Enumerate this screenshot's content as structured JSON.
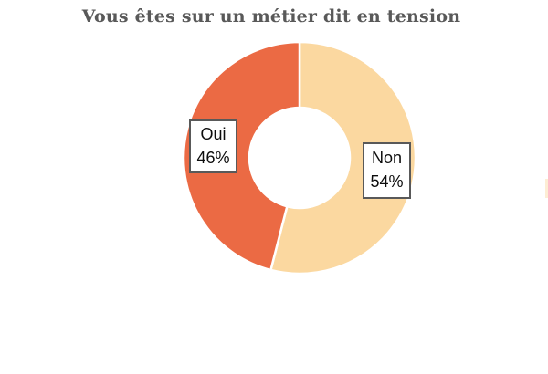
{
  "title": "Vous êtes sur un métier dit en tension",
  "title_color": "#595959",
  "chart_data": {
    "type": "pie",
    "subtype": "donut",
    "title": "Vous êtes sur un métier dit en tension",
    "units": "percent",
    "start_angle_deg": 0,
    "direction": "clockwise",
    "hole_ratio": 0.43,
    "separator_color": "#ffffff",
    "legend": "none",
    "segments": [
      {
        "label": "Non",
        "value": 54,
        "pct_label": "54%",
        "color": "#FBD8A0"
      },
      {
        "label": "Oui",
        "value": 46,
        "pct_label": "46%",
        "color": "#EB6A44"
      }
    ]
  },
  "callouts": {
    "border_color": "#595959",
    "oui": {
      "line1": "Oui",
      "line2": "46%"
    },
    "non": {
      "line1": "Non",
      "line2": "54%"
    }
  },
  "artifacts": {
    "right_edge_sliver_color": "#FBD8A0"
  }
}
